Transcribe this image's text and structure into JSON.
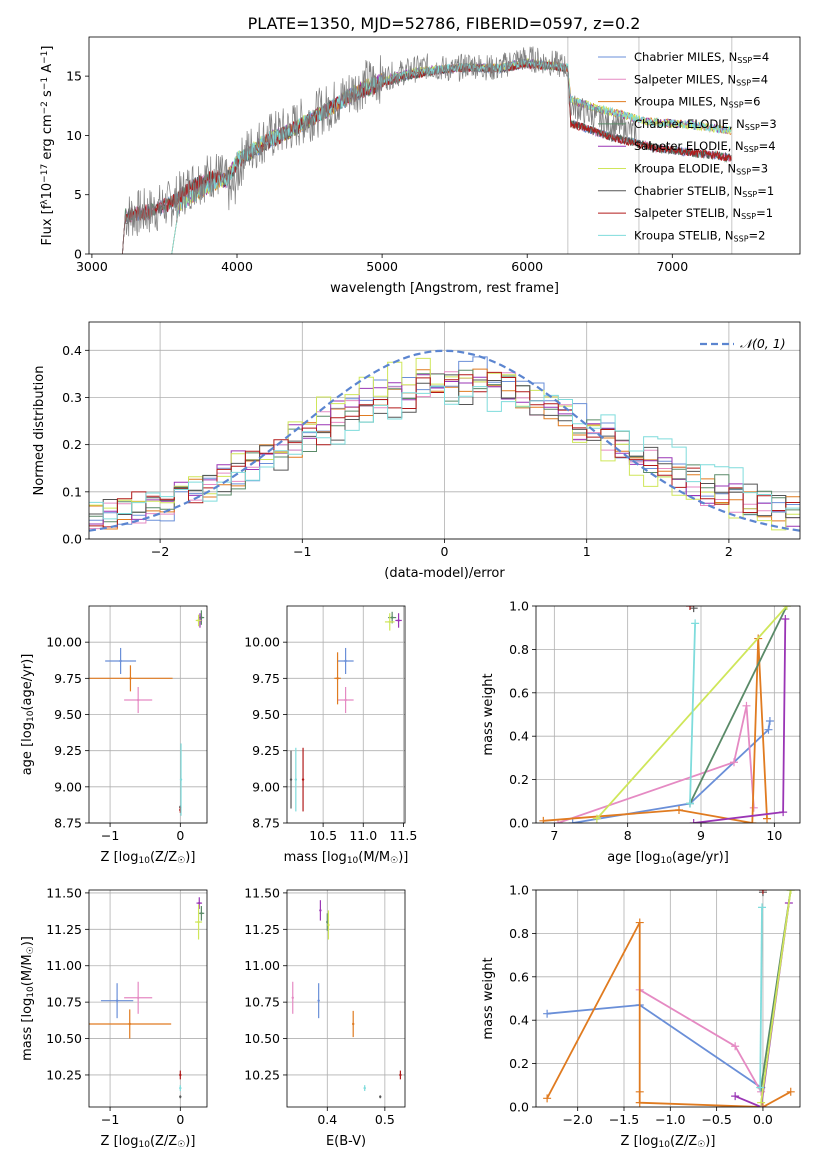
{
  "figure": {
    "title": "PLATE=1350, MJD=52786, FIBERID=0597, z=0.2"
  },
  "models": [
    {
      "name": "Chabrier MILES",
      "nssp": "4",
      "color": "#6a8fd8"
    },
    {
      "name": "Salpeter MILES",
      "nssp": "4",
      "color": "#e58ac3"
    },
    {
      "name": "Kroupa MILES",
      "nssp": "6",
      "color": "#e07b20"
    },
    {
      "name": "Chabrier ELODIE",
      "nssp": "3",
      "color": "#5a8a68"
    },
    {
      "name": "Salpeter ELODIE",
      "nssp": "4",
      "color": "#9a35b5"
    },
    {
      "name": "Kroupa ELODIE",
      "nssp": "3",
      "color": "#cfe65a"
    },
    {
      "name": "Chabrier STELIB",
      "nssp": "1",
      "color": "#555555"
    },
    {
      "name": "Salpeter STELIB",
      "nssp": "1",
      "color": "#b21a1a"
    },
    {
      "name": "Kroupa STELIB",
      "nssp": "2",
      "color": "#7fdcdc"
    }
  ],
  "chart_data": [
    {
      "id": "spectrum",
      "type": "line",
      "xlabel": "wavelength [Angstrom, rest frame]",
      "ylabel_parts": [
        "Flux [f",
        "λ",
        "10",
        "−17",
        " erg cm",
        "−2",
        " s",
        "−1",
        " A",
        "−1",
        "]"
      ],
      "xlim": [
        2980,
        7880
      ],
      "ylim": [
        0,
        18.3
      ],
      "xticks": [
        3000,
        4000,
        5000,
        6000,
        7000
      ],
      "yticks": [
        0,
        5,
        10,
        15
      ],
      "vlines": [
        6280,
        6770,
        7410
      ],
      "observed": {
        "color": "#7f7f7f",
        "x": [
          3210,
          3230,
          3400,
          3550,
          3700,
          3850,
          3920,
          3960,
          4050,
          4200,
          4350,
          4500,
          4650,
          4800,
          4900,
          5000,
          5100,
          5200,
          5300,
          5400,
          5500,
          5600,
          5700,
          5800,
          5900,
          6000,
          6100,
          6200,
          6270,
          6300,
          6400,
          6500,
          6600,
          6700,
          6760
        ],
        "y": [
          0,
          3.2,
          3.6,
          4.3,
          6.0,
          6.8,
          6.2,
          5.0,
          8.5,
          9.8,
          10.5,
          11.5,
          12.5,
          13.8,
          14.5,
          14.8,
          15.2,
          15.5,
          15.8,
          15.7,
          15.5,
          16.0,
          15.8,
          15.6,
          16.3,
          16.5,
          16.3,
          16.0,
          15.8,
          12.5,
          12.0,
          11.3,
          10.8,
          10.5,
          10.0
        ]
      },
      "model_a": {
        "x": [
          3550,
          3600,
          3700,
          3850,
          3930,
          4000,
          4100,
          4200,
          4350,
          4500,
          4650,
          4800,
          4900,
          5000,
          5200,
          5400,
          5600,
          5800,
          6000,
          6100,
          6200,
          6280,
          6300,
          6400,
          6500,
          6600,
          6700,
          6770,
          6900,
          7100,
          7300,
          7410
        ],
        "y": [
          0,
          4.0,
          5.0,
          6.0,
          6.3,
          8.0,
          8.7,
          9.6,
          10.3,
          11.3,
          12.3,
          13.6,
          14.2,
          14.6,
          15.3,
          15.6,
          15.8,
          15.7,
          16.2,
          16.0,
          15.9,
          15.7,
          13.0,
          12.6,
          12.2,
          11.9,
          11.6,
          11.3,
          11.1,
          10.9,
          10.6,
          10.4
        ]
      },
      "model_b": {
        "x": [
          3210,
          3230,
          3400,
          3550,
          3700,
          3850,
          3930,
          4000,
          4200,
          4400,
          4600,
          4800,
          5000,
          5200,
          5400,
          5600,
          5800,
          6000,
          6200,
          6280,
          6300,
          6400,
          6500,
          6600,
          6700,
          6770,
          6900,
          7100,
          7300,
          7410
        ],
        "y": [
          0,
          3.2,
          3.6,
          4.3,
          5.8,
          6.5,
          6.2,
          7.8,
          9.4,
          10.6,
          12.0,
          13.4,
          14.4,
          15.1,
          15.5,
          15.7,
          15.6,
          16.0,
          15.8,
          15.6,
          11.0,
          10.6,
          10.2,
          9.8,
          9.5,
          9.3,
          8.9,
          8.6,
          8.3,
          8.1
        ]
      }
    },
    {
      "id": "residuals",
      "type": "histogram",
      "xlabel": "(data-model)/error",
      "ylabel": "Normed distribution",
      "xlim": [
        -2.5,
        2.5
      ],
      "ylim": [
        0,
        0.46
      ],
      "xticks": [
        -2,
        -1,
        0,
        1,
        2
      ],
      "yticks": [
        0,
        0.1,
        0.2,
        0.3,
        0.4
      ],
      "legend": {
        "label": "𝒩(0, 1)",
        "loc": "upper right"
      },
      "gaussian": {
        "mu": 0,
        "sigma": 1,
        "color": "#5b85d0"
      },
      "bin_width": 0.1
    },
    {
      "id": "age_vs_Z",
      "type": "scatter",
      "xlabel_html": "Z [log10(Z/Z☉)]",
      "xlabel_parts": [
        "Z [log",
        "10",
        "(Z/Z",
        "☉",
        ")]"
      ],
      "ylabel_parts": [
        "age  [log",
        "10",
        "(age/yr)]"
      ],
      "xlim": [
        -1.3,
        0.38
      ],
      "ylim": [
        8.75,
        10.25
      ],
      "xticks": [
        -1,
        0
      ],
      "yticks": [
        8.75,
        9.0,
        9.25,
        9.5,
        9.75,
        10.0
      ],
      "points": [
        {
          "m": 0,
          "x": -0.85,
          "y": 9.87,
          "ex": 0.22,
          "ey": 0.09
        },
        {
          "m": 1,
          "x": -0.6,
          "y": 9.6,
          "ex": 0.2,
          "ey": 0.09
        },
        {
          "m": 2,
          "x": -0.71,
          "y": 9.75,
          "ex": 0.6,
          "ey": 0.09
        },
        {
          "m": 3,
          "x": 0.3,
          "y": 10.17,
          "ex": 0.04,
          "ey": 0.05
        },
        {
          "m": 4,
          "x": 0.28,
          "y": 10.15,
          "ex": 0.03,
          "ey": 0.05
        },
        {
          "m": 5,
          "x": 0.26,
          "y": 10.15,
          "ex": 0.04,
          "ey": 0.04
        },
        {
          "m": 6,
          "x": 0.0,
          "y": 8.86,
          "ex": 0.01,
          "ey": 0.01
        },
        {
          "m": 7,
          "x": 0.0,
          "y": 8.84,
          "ex": 0.01,
          "ey": 0.02
        },
        {
          "m": 8,
          "x": 0.01,
          "y": 9.05,
          "ex": 0.01,
          "ey": 0.25
        }
      ]
    },
    {
      "id": "age_vs_mass",
      "type": "scatter",
      "xlabel_parts": [
        "mass [log",
        "10",
        "(M/M",
        "☉",
        ")]"
      ],
      "xlim": [
        10.05,
        11.52
      ],
      "ylim": [
        8.75,
        10.25
      ],
      "xticks": [
        10.5,
        11.0,
        11.5
      ],
      "yticks": [
        8.75,
        9.0,
        9.25,
        9.5,
        9.75,
        10.0
      ],
      "points": [
        {
          "m": 0,
          "x": 10.78,
          "y": 9.87,
          "ex": 0.1,
          "ey": 0.09
        },
        {
          "m": 1,
          "x": 10.78,
          "y": 9.6,
          "ex": 0.1,
          "ey": 0.09
        },
        {
          "m": 2,
          "x": 10.68,
          "y": 9.75,
          "ex": 0.04,
          "ey": 0.18
        },
        {
          "m": 3,
          "x": 11.36,
          "y": 10.17,
          "ex": 0.05,
          "ey": 0.04
        },
        {
          "m": 4,
          "x": 11.44,
          "y": 10.15,
          "ex": 0.04,
          "ey": 0.05
        },
        {
          "m": 5,
          "x": 11.33,
          "y": 10.14,
          "ex": 0.06,
          "ey": 0.06
        },
        {
          "m": 6,
          "x": 10.1,
          "y": 9.05,
          "ex": 0.01,
          "ey": 0.2
        },
        {
          "m": 7,
          "x": 10.25,
          "y": 9.05,
          "ex": 0.01,
          "ey": 0.22
        },
        {
          "m": 8,
          "x": 10.16,
          "y": 9.05,
          "ex": 0.01,
          "ey": 0.22
        }
      ]
    },
    {
      "id": "weight_vs_age",
      "type": "line",
      "xlabel_parts": [
        "age  [log",
        "10",
        "(age/yr)]"
      ],
      "ylabel": "mass weight",
      "xlim": [
        6.75,
        10.35
      ],
      "ylim": [
        0,
        1
      ],
      "xticks": [
        7,
        8,
        9,
        10
      ],
      "yticks": [
        0,
        0.2,
        0.4,
        0.6,
        0.8,
        1.0
      ],
      "series": [
        {
          "m": 0,
          "x": [
            7.25,
            8.85,
            9.92,
            9.94
          ],
          "y": [
            0.0,
            0.09,
            0.43,
            0.47
          ]
        },
        {
          "m": 1,
          "x": [
            7.05,
            9.45,
            9.62,
            9.72
          ],
          "y": [
            0.0,
            0.28,
            0.54,
            0.07
          ]
        },
        {
          "m": 2,
          "x": [
            6.85,
            8.7,
            9.7,
            9.78,
            9.9
          ],
          "y": [
            0.01,
            0.06,
            0.0,
            0.85,
            0.02
          ]
        },
        {
          "m": 3,
          "x": [
            8.85,
            10.17
          ],
          "y": [
            0.09,
            1.0
          ]
        },
        {
          "m": 4,
          "x": [
            8.9,
            10.12,
            10.15
          ],
          "y": [
            0.0,
            0.05,
            0.94
          ]
        },
        {
          "m": 5,
          "x": [
            7.58,
            10.17
          ],
          "y": [
            0.02,
            1.0
          ]
        },
        {
          "m": 6,
          "x": [
            8.9
          ],
          "y": [
            0.99
          ]
        },
        {
          "m": 7,
          "x": [
            8.85
          ],
          "y": [
            1.0
          ]
        },
        {
          "m": 8,
          "x": [
            8.85,
            8.92
          ],
          "y": [
            0.09,
            0.92
          ]
        }
      ]
    },
    {
      "id": "mass_vs_Z",
      "type": "scatter",
      "xlabel_parts": [
        "Z [log",
        "10",
        "(Z/Z",
        "☉",
        ")]"
      ],
      "ylabel_parts": [
        "mass [log",
        "10",
        "(M/M",
        "☉",
        ")]"
      ],
      "xlim": [
        -1.3,
        0.38
      ],
      "ylim": [
        10.03,
        11.52
      ],
      "xticks": [
        -1,
        0
      ],
      "yticks": [
        10.25,
        10.5,
        10.75,
        11.0,
        11.25,
        11.5
      ],
      "points": [
        {
          "m": 0,
          "x": -0.9,
          "y": 10.76,
          "ex": 0.23,
          "ey": 0.12
        },
        {
          "m": 1,
          "x": -0.6,
          "y": 10.78,
          "ex": 0.2,
          "ey": 0.11
        },
        {
          "m": 2,
          "x": -0.72,
          "y": 10.6,
          "ex": 0.59,
          "ey": 0.1
        },
        {
          "m": 3,
          "x": 0.3,
          "y": 11.36,
          "ex": 0.04,
          "ey": 0.05
        },
        {
          "m": 4,
          "x": 0.27,
          "y": 11.43,
          "ex": 0.04,
          "ey": 0.04
        },
        {
          "m": 5,
          "x": 0.26,
          "y": 11.3,
          "ex": 0.05,
          "ey": 0.12
        },
        {
          "m": 6,
          "x": 0.0,
          "y": 10.1,
          "ex": 0.01,
          "ey": 0.01
        },
        {
          "m": 7,
          "x": 0.0,
          "y": 10.25,
          "ex": 0.01,
          "ey": 0.03
        },
        {
          "m": 8,
          "x": 0.0,
          "y": 10.16,
          "ex": 0.01,
          "ey": 0.02
        }
      ]
    },
    {
      "id": "mass_vs_ebv",
      "type": "scatter",
      "xlabel": "E(B-V)",
      "xlim": [
        0.33,
        0.535
      ],
      "ylim": [
        10.03,
        11.52
      ],
      "xticks": [
        0.4,
        0.5
      ],
      "yticks": [
        10.25,
        10.5,
        10.75,
        11.0,
        11.25,
        11.5
      ],
      "points": [
        {
          "m": 0,
          "x": 0.385,
          "y": 10.76,
          "ex": 0.0,
          "ey": 0.12
        },
        {
          "m": 1,
          "x": 0.34,
          "y": 10.78,
          "ex": 0.0,
          "ey": 0.11
        },
        {
          "m": 2,
          "x": 0.445,
          "y": 10.6,
          "ex": 0.0,
          "ey": 0.09
        },
        {
          "m": 3,
          "x": 0.4,
          "y": 11.3,
          "ex": 0.0,
          "ey": 0.06
        },
        {
          "m": 4,
          "x": 0.388,
          "y": 11.38,
          "ex": 0.0,
          "ey": 0.07
        },
        {
          "m": 5,
          "x": 0.402,
          "y": 11.28,
          "ex": 0.0,
          "ey": 0.1
        },
        {
          "m": 6,
          "x": 0.492,
          "y": 10.1,
          "ex": 0.0,
          "ey": 0.01
        },
        {
          "m": 7,
          "x": 0.527,
          "y": 10.25,
          "ex": 0.0,
          "ey": 0.03
        },
        {
          "m": 8,
          "x": 0.465,
          "y": 10.16,
          "ex": 0.0,
          "ey": 0.02
        }
      ]
    },
    {
      "id": "weight_vs_Z",
      "type": "line",
      "xlabel_parts": [
        "Z [log",
        "10",
        "(Z/Z",
        "☉",
        ")]"
      ],
      "ylabel": "mass weight",
      "xlim": [
        -2.45,
        0.4
      ],
      "ylim": [
        0,
        1
      ],
      "xticks": [
        -2.0,
        -1.5,
        -1.0,
        -0.5,
        0.0
      ],
      "yticks": [
        0,
        0.2,
        0.4,
        0.6,
        0.8,
        1.0
      ],
      "series": [
        {
          "m": 0,
          "x": [
            -2.33,
            -1.33,
            -0.02,
            -0.02
          ],
          "y": [
            0.43,
            0.47,
            0.09,
            0.09
          ]
        },
        {
          "m": 1,
          "x": [
            -1.33,
            -0.3,
            -0.02
          ],
          "y": [
            0.54,
            0.28,
            0.07
          ]
        },
        {
          "m": 2,
          "x": [
            -2.33,
            -1.33,
            -1.33,
            -1.33,
            0.0,
            0.3
          ],
          "y": [
            0.04,
            0.85,
            0.07,
            0.02,
            0.0,
            0.07
          ]
        },
        {
          "m": 3,
          "x": [
            -0.02,
            0.3
          ],
          "y": [
            0.09,
            1.0
          ]
        },
        {
          "m": 4,
          "x": [
            -0.3,
            -0.02,
            0.28
          ],
          "y": [
            0.05,
            0.0,
            0.94
          ]
        },
        {
          "m": 5,
          "x": [
            -0.02,
            0.3
          ],
          "y": [
            0.02,
            1.0
          ]
        },
        {
          "m": 6,
          "x": [
            0.0
          ],
          "y": [
            0.99
          ]
        },
        {
          "m": 7,
          "x": [
            0.0
          ],
          "y": [
            1.0
          ]
        },
        {
          "m": 8,
          "x": [
            -0.03,
            -0.01
          ],
          "y": [
            0.09,
            0.92
          ]
        }
      ]
    }
  ]
}
